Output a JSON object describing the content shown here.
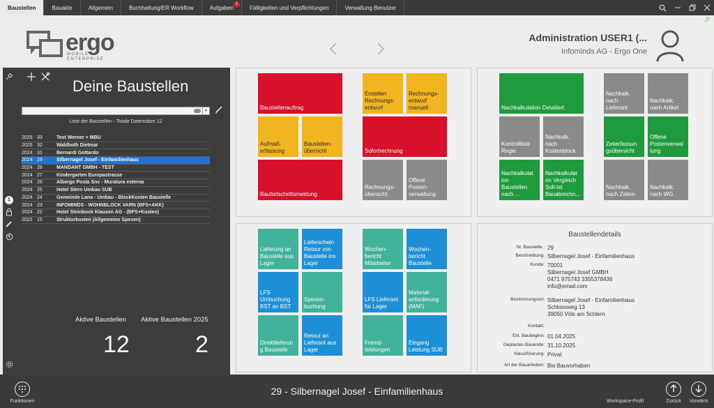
{
  "menu": [
    {
      "label": "Baustellen",
      "active": true
    },
    {
      "label": "Bauakte"
    },
    {
      "label": "Allgemein"
    },
    {
      "label": "Buchhaltung/ER Workflow"
    },
    {
      "label": "Aufgaben",
      "badge": "1"
    },
    {
      "label": "Fälligkeiten und Verpflichtungen"
    },
    {
      "label": "Verwaltung Benutzer"
    }
  ],
  "window_controls": [
    "search-icon",
    "minimize-icon",
    "restore-icon",
    "close-icon"
  ],
  "logo": {
    "name": "ergo",
    "sub1": "MOBILE",
    "sub2": "ENTERPRISE"
  },
  "user": {
    "name": "Administration USER1 (...",
    "company": "Infominds AG - Ergo One"
  },
  "left": {
    "title": "Deine Baustellen",
    "list_caption": "Liste der Baustellen - Totale Datensätze 12",
    "rows": [
      {
        "year": "2025",
        "no": "33",
        "name": "Test Werner + MBU"
      },
      {
        "year": "2025",
        "no": "32",
        "name": "Waldboth Dietmar"
      },
      {
        "year": "2024",
        "no": "31",
        "name": "Bernardi  Gottardo"
      },
      {
        "year": "2024",
        "no": "29",
        "name": "Silbernagel Josef - Einfamilienhaus",
        "selected": true
      },
      {
        "year": "2024",
        "no": "28",
        "name": "MANDANT GMBH - TEST"
      },
      {
        "year": "2024",
        "no": "27",
        "name": "Kindergarten Europastrasse"
      },
      {
        "year": "2024",
        "no": "26",
        "name": "Albergo Posta Snc - Muratura esterna"
      },
      {
        "year": "2024",
        "no": "25",
        "name": "Hotel Stern Umbau SUB"
      },
      {
        "year": "2024",
        "no": "24",
        "name": "Gemeinde Lana - Umbau - BlockKosten Baustelle"
      },
      {
        "year": "2024",
        "no": "23",
        "name": "INFOMINDS - WOHNBLOCK VARN (BFS+AKK)"
      },
      {
        "year": "2024",
        "no": "22",
        "name": "Hotel Steinbock Klausen AG - (BFS+Kosten)"
      },
      {
        "year": "2022",
        "no": "15",
        "name": "Strukturkosten (Allgemeine Spesen)"
      }
    ],
    "stat1_label": "Aktive Baustellen",
    "stat1_value": "12",
    "stat2_label": "Aktive Baustellen 2025",
    "stat2_value": "2",
    "strip_badge": "1"
  },
  "tiles_panel1": [
    {
      "label": "Baustellenauftrag",
      "color": "red"
    },
    {
      "label": "Erstellen\nRechnungs-\nentwurf",
      "color": "yellow"
    },
    {
      "label": "Rechnungs-\nentwurf\nmanuell",
      "color": "yellow"
    },
    {
      "label": "Aufmaß-\nerfassung",
      "color": "yellow"
    },
    {
      "label": "Baustellen-\nübersicht",
      "color": "yellow"
    },
    {
      "label": "Sofortrechnung",
      "color": "red"
    },
    {
      "label": "Baufortschrittsmeldung",
      "color": "red"
    },
    {
      "label": "Rechnungs-\nübersicht",
      "color": "gray"
    },
    {
      "label": "Offene\nPosten-\nverwaltung",
      "color": "gray"
    }
  ],
  "tiles_panel2": [
    {
      "label": "Nachkalkulation Detailiert",
      "color": "green"
    },
    {
      "label": "Nachkalk.\nnach\nLieferant",
      "color": "gray"
    },
    {
      "label": "Nachkalk.\nnach Artikel",
      "color": "gray"
    },
    {
      "label": "Kontrollliste\nRegie",
      "color": "gray"
    },
    {
      "label": "Nachkalk.\nnach\nKostenblock",
      "color": "gray"
    },
    {
      "label": "Zeiterfassun\ngsübersicht",
      "color": "green"
    },
    {
      "label": "Offene\nPostenverwal\ntung",
      "color": "green"
    },
    {
      "label": "Nachkalkulat\nion\nBaustellen\nnach ...",
      "color": "green"
    },
    {
      "label": "Nachkalkulat\non Vergleich\nSoll-Ist\nBauabrechn...",
      "color": "green"
    },
    {
      "label": "Nachkalk.\nnach Zeiten",
      "color": "gray"
    },
    {
      "label": "Nachkalk.\nnach WG",
      "color": "gray"
    }
  ],
  "tiles_panel3": [
    {
      "label": "Lieferung an\nBaustelle aus\nLager",
      "color": "teal"
    },
    {
      "label": "Lieferschein\nRetour von\nBaustelle ins\nLager",
      "color": "blue"
    },
    {
      "label": "Wochen-\nbericht\nMitarbeiter",
      "color": "teal"
    },
    {
      "label": "Wochen-\nbericht\nBaustelle",
      "color": "blue"
    },
    {
      "label": "LFS\nUmbuchung\nBST an BST",
      "color": "blue"
    },
    {
      "label": "Spesen-\nbuchung",
      "color": "teal"
    },
    {
      "label": "LFS Lieferant\nfür Lager",
      "color": "blue"
    },
    {
      "label": "Material-\nanforderung\n(MAF)",
      "color": "teal"
    },
    {
      "label": "Direktlieferun\ng Baustelle",
      "color": "teal"
    },
    {
      "label": "Retour an\nLieferant aus\nLager",
      "color": "blue"
    },
    {
      "label": "Fremd-\nleistungen",
      "color": "teal"
    },
    {
      "label": "Eingang\nLeistung SUB",
      "color": "blue"
    }
  ],
  "details": {
    "title": "Baustellendetails",
    "rows": [
      {
        "label": "Nr. Baustelle.:",
        "value": "29"
      },
      {
        "label": "Beschreibung:",
        "value": "Silbernagel Josef - Einfamilienhaus"
      },
      {
        "label": "Kunde:",
        "value": "70001\nSilbernagel Josef GMBH\n0471 975743 3355378436\ninfo@email.com"
      },
      {
        "label": "Bestimmungsort:",
        "value": "Silbernagel Josef - Einfamilienhaus\nSchlossweg 13\n39050 Völs am Schlern"
      },
      {
        "label": "Kontakt:",
        "value": ""
      },
      {
        "label": "Ext. Baubeginn:",
        "value": "01.04.2025"
      },
      {
        "label": "Geplantes Bauende:",
        "value": "31.10.2025"
      },
      {
        "label": "Klassifizierung:",
        "value": "Privat"
      },
      {
        "label": "Art der Bauarbeiten:",
        "value": "Bio Bauvorhaben"
      }
    ]
  },
  "footer": {
    "title": "29 - Silbernagel Josef - Einfamilienhaus",
    "functions_label": "Funktionen",
    "workspace_label": "Workspace-Profil",
    "back_label": "Zurück",
    "forward_label": "Vorwärts"
  }
}
